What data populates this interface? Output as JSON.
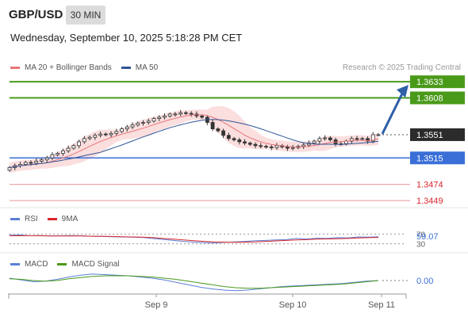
{
  "header": {
    "pair": "GBP/USD",
    "timeframe": "30 MIN",
    "datetime": "Wednesday, September 10, 2025 5:18:28 PM CET"
  },
  "credit": "Research © 2025 Trading Central",
  "legend_main": [
    {
      "label": "MA 20 + Bollinger Bands",
      "color": "#e8777a"
    },
    {
      "label": "MA 50",
      "color": "#2f5597"
    }
  ],
  "legend_rsi": [
    {
      "label": "RSI",
      "color": "#5b7fd6"
    },
    {
      "label": "9MA",
      "color": "#d9262c"
    }
  ],
  "legend_macd": [
    {
      "label": "MACD",
      "color": "#5b7fd6"
    },
    {
      "label": "MACD Signal",
      "color": "#4a9a1a"
    }
  ],
  "chart_data": [
    {
      "type": "candlestick",
      "x_ticks": [
        "Sep 9",
        "Sep 10",
        "Sep 11"
      ],
      "price_range": [
        1.3438,
        1.3643
      ],
      "close_series": [
        1.35,
        1.3503,
        1.3505,
        1.3508,
        1.3507,
        1.351,
        1.3512,
        1.3515,
        1.352,
        1.3522,
        1.3526,
        1.353,
        1.3534,
        1.354,
        1.3545,
        1.3547,
        1.355,
        1.3552,
        1.3551,
        1.3553,
        1.3556,
        1.356,
        1.3563,
        1.3566,
        1.3569,
        1.357,
        1.3572,
        1.3576,
        1.3578,
        1.358,
        1.3583,
        1.3583,
        1.3585,
        1.3584,
        1.3583,
        1.358,
        1.3578,
        1.357,
        1.356,
        1.3557,
        1.355,
        1.3545,
        1.3543,
        1.354,
        1.3538,
        1.3536,
        1.3534,
        1.3533,
        1.3532,
        1.3531,
        1.3534,
        1.3532,
        1.353,
        1.3531,
        1.3533,
        1.3535,
        1.3538,
        1.3541,
        1.3545,
        1.3546,
        1.3543,
        1.3537,
        1.3537,
        1.3541,
        1.3545,
        1.3544,
        1.3545,
        1.3541,
        1.3551,
        1.3551
      ],
      "levels": [
        {
          "value": "1.3633",
          "kind": "resistance"
        },
        {
          "value": "1.3608",
          "kind": "resistance"
        },
        {
          "value": "1.3551",
          "kind": "last"
        },
        {
          "value": "1.3515",
          "kind": "support"
        },
        {
          "value": "1.3474",
          "kind": "support"
        },
        {
          "value": "1.3449",
          "kind": "support"
        }
      ],
      "projection": {
        "from": 1.3551,
        "to": 1.3633
      }
    },
    {
      "type": "line",
      "name": "RSI",
      "range": [
        0,
        100
      ],
      "levels": [
        "70",
        "30"
      ],
      "last_value": "59.07",
      "series": [
        {
          "name": "RSI",
          "values": [
            65,
            66,
            63,
            64,
            62,
            63,
            64,
            63,
            61,
            60,
            59,
            58,
            57,
            56,
            52,
            48,
            44,
            40,
            37,
            35,
            34,
            36,
            38,
            40,
            43,
            44,
            46,
            47,
            52,
            50,
            53,
            52,
            55,
            54,
            58,
            57,
            59
          ]
        },
        {
          "name": "9MA",
          "values": [
            63,
            63,
            63,
            63,
            62,
            62,
            62,
            62,
            61,
            61,
            60,
            59,
            58,
            57,
            55,
            52,
            49,
            46,
            43,
            40,
            38,
            37,
            36,
            37,
            38,
            40,
            42,
            44,
            46,
            47,
            49,
            50,
            51,
            52,
            54,
            55,
            56
          ]
        }
      ]
    },
    {
      "type": "line",
      "name": "MACD",
      "last_value": "0.00",
      "series": [
        {
          "name": "MACD",
          "values": [
            4,
            1,
            -2,
            -1,
            2,
            6,
            9,
            11,
            10,
            9,
            8,
            6,
            4,
            1,
            -3,
            -7,
            -11,
            -14,
            -16,
            -17,
            -16,
            -14,
            -12,
            -10,
            -9,
            -8,
            -7,
            -6,
            -5,
            -3,
            -1,
            0
          ]
        },
        {
          "name": "MACD Signal",
          "values": [
            3,
            2,
            0,
            -1,
            0,
            3,
            5,
            7,
            8,
            8,
            8,
            7,
            6,
            4,
            2,
            -1,
            -4,
            -7,
            -10,
            -12,
            -13,
            -13,
            -12,
            -11,
            -10,
            -9,
            -8,
            -7,
            -6,
            -4,
            -2,
            0
          ]
        }
      ]
    }
  ]
}
